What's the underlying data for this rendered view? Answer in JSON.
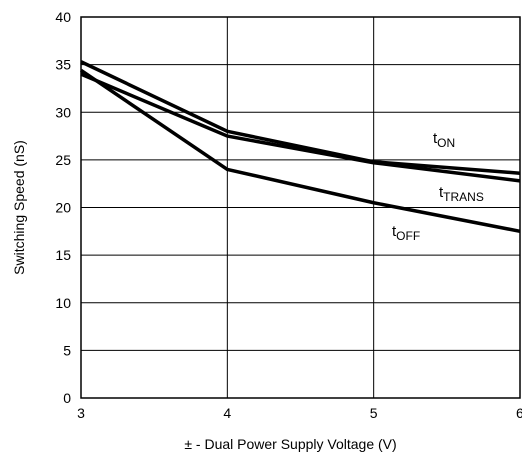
{
  "chart_data": {
    "type": "line",
    "xlabel": "± - Dual Power Supply Voltage (V)",
    "ylabel": "Switching Speed (nS)",
    "xlim": [
      3,
      6
    ],
    "ylim": [
      0,
      40
    ],
    "x_ticks": [
      3,
      4,
      5,
      6
    ],
    "y_ticks": [
      0,
      5,
      10,
      15,
      20,
      25,
      30,
      35,
      40
    ],
    "grid": true,
    "series": [
      {
        "name": "ON",
        "prefix": "t",
        "subscript": "ON",
        "x": [
          3,
          4,
          5,
          6
        ],
        "y": [
          35.3,
          28.0,
          24.8,
          23.6
        ]
      },
      {
        "name": "TRANS",
        "prefix": "t",
        "subscript": "TRANS",
        "x": [
          3,
          4,
          5,
          6
        ],
        "y": [
          34.0,
          27.5,
          24.7,
          22.8
        ]
      },
      {
        "name": "OFF",
        "prefix": "t",
        "subscript": "OFF",
        "x": [
          3,
          4,
          5,
          6
        ],
        "y": [
          34.4,
          24.0,
          20.5,
          17.5
        ]
      }
    ]
  }
}
